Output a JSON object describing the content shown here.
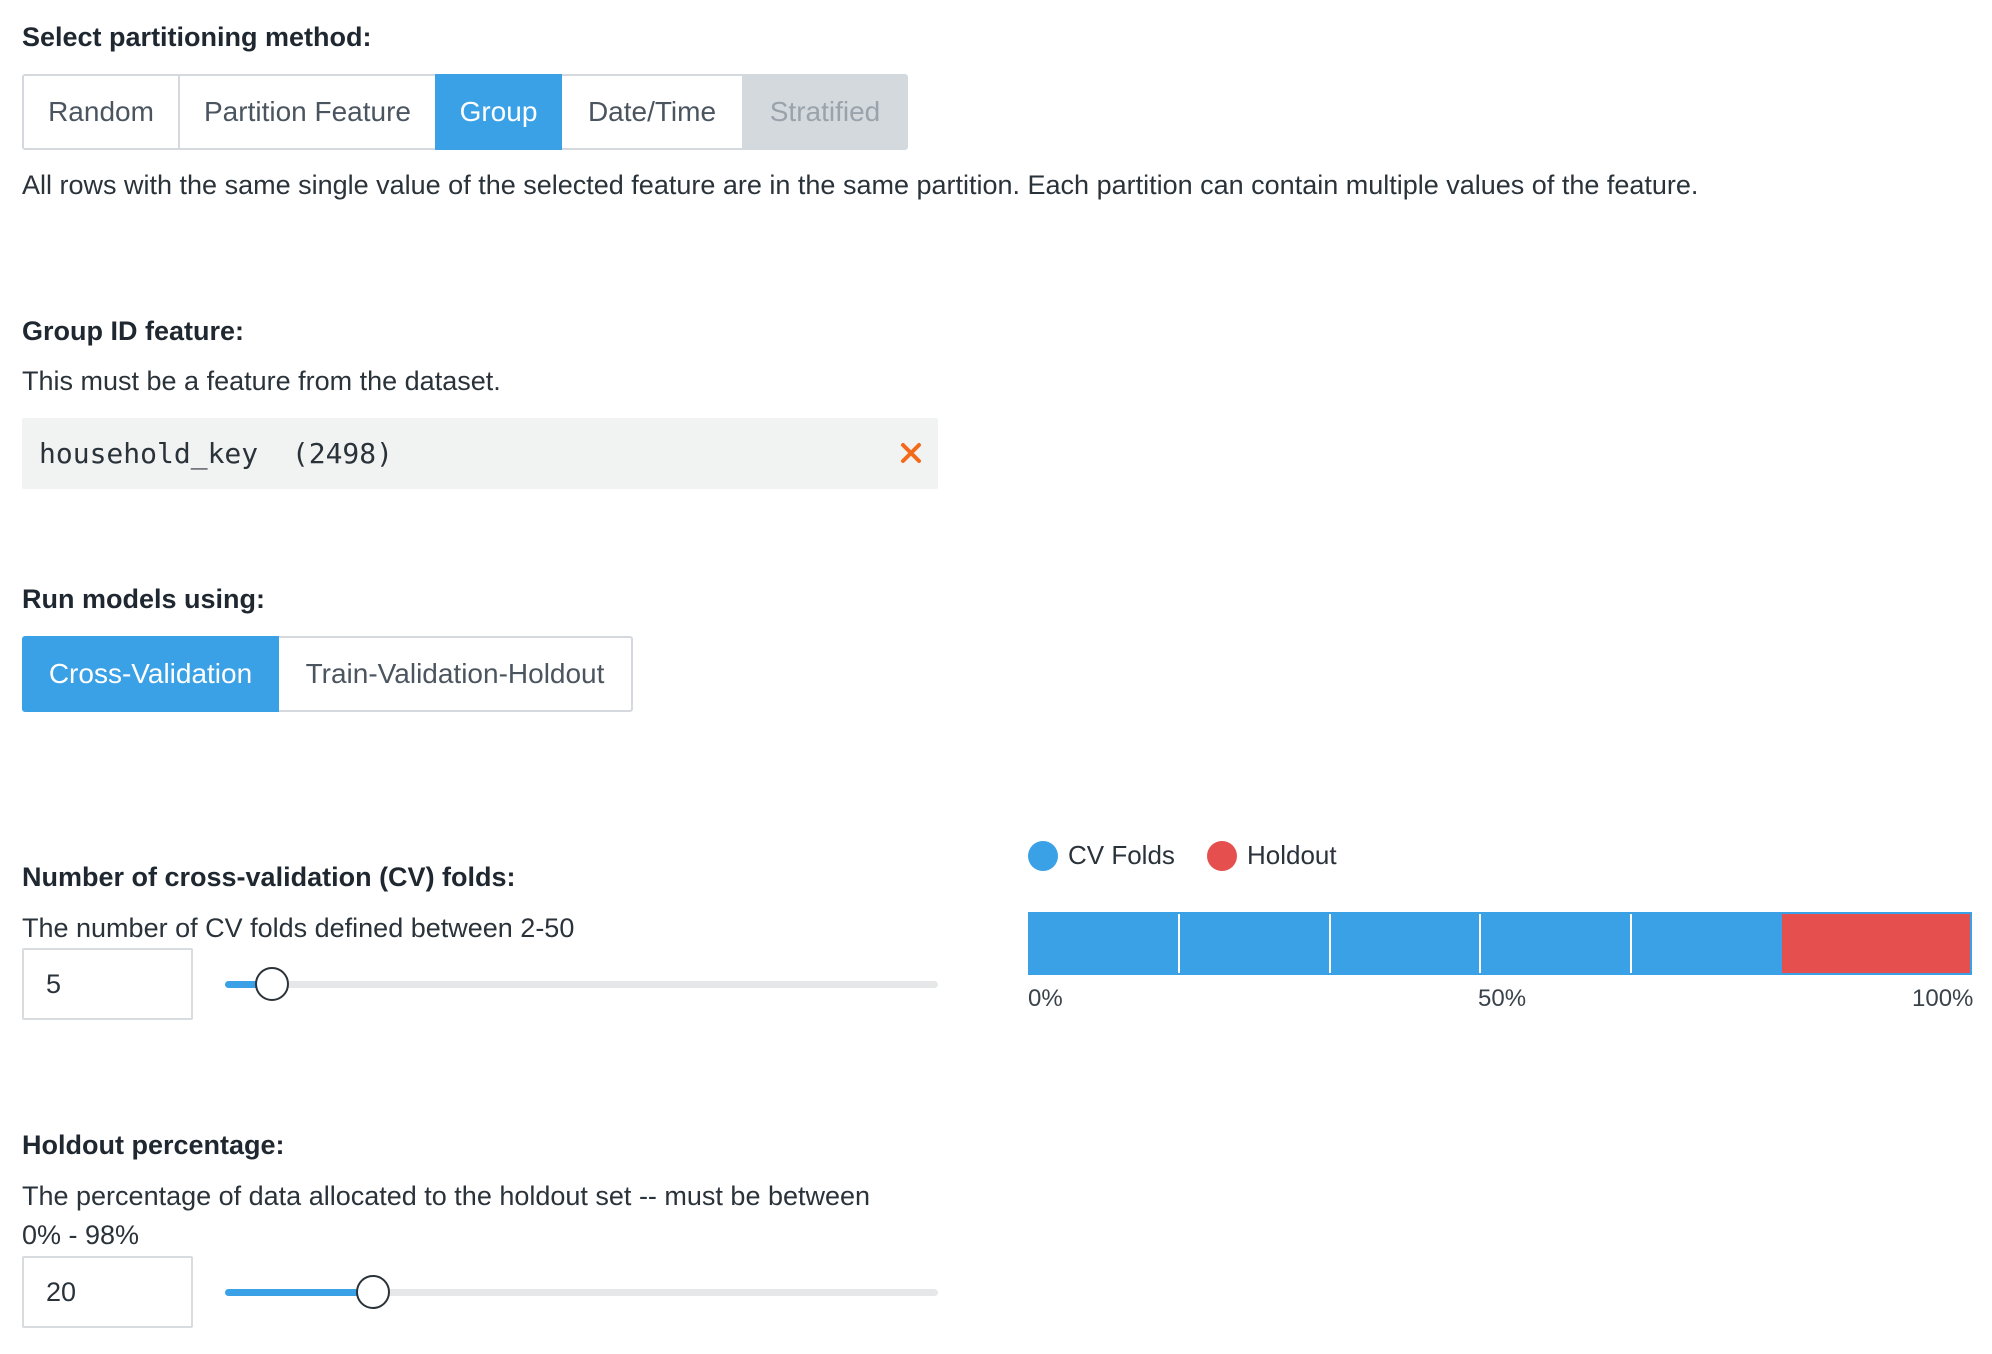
{
  "partitioning": {
    "heading": "Select partitioning method:",
    "options": [
      {
        "label": "Random",
        "state": "default"
      },
      {
        "label": "Partition Feature",
        "state": "default"
      },
      {
        "label": "Group",
        "state": "active"
      },
      {
        "label": "Date/Time",
        "state": "default"
      },
      {
        "label": "Stratified",
        "state": "disabled"
      }
    ],
    "description": "All rows with the same single value of the selected feature are in the same partition. Each partition can contain multiple values of the feature."
  },
  "group_id": {
    "heading": "Group ID feature:",
    "description": "This must be a feature from the dataset.",
    "value": "household_key  (2498)",
    "clear_icon": "close-x-icon"
  },
  "run_models": {
    "heading": "Run models using:",
    "options": [
      {
        "label": "Cross-Validation",
        "state": "active"
      },
      {
        "label": "Train-Validation-Holdout",
        "state": "default"
      }
    ]
  },
  "cv_folds": {
    "heading": "Number of cross-validation (CV) folds:",
    "description": "The number of CV folds defined between 2-50",
    "value": "5",
    "min": 2,
    "max": 50
  },
  "holdout": {
    "heading": "Holdout percentage:",
    "description_line1": "The percentage of data allocated to the holdout set -- must be between",
    "description_line2": "0% - 98%",
    "value": "20",
    "min": 0,
    "max": 98
  },
  "chart": {
    "legend": [
      {
        "label": "CV Folds",
        "color": "#3aa1e6"
      },
      {
        "label": "Holdout",
        "color": "#e5504f"
      }
    ],
    "ticks": [
      "0%",
      "50%",
      "100%"
    ]
  },
  "chart_data": {
    "type": "bar",
    "orientation": "horizontal-stacked",
    "series": [
      {
        "name": "CV Folds",
        "values": [
          16,
          16,
          16,
          16,
          16
        ]
      },
      {
        "name": "Holdout",
        "values": [
          20
        ]
      }
    ],
    "xlim": [
      0,
      100
    ],
    "ticks": [
      "0%",
      "50%",
      "100%"
    ],
    "legend_position": "top"
  },
  "colors": {
    "accent": "#3aa1e6",
    "holdout": "#e5504f",
    "clear_icon": "#f26b1d"
  }
}
